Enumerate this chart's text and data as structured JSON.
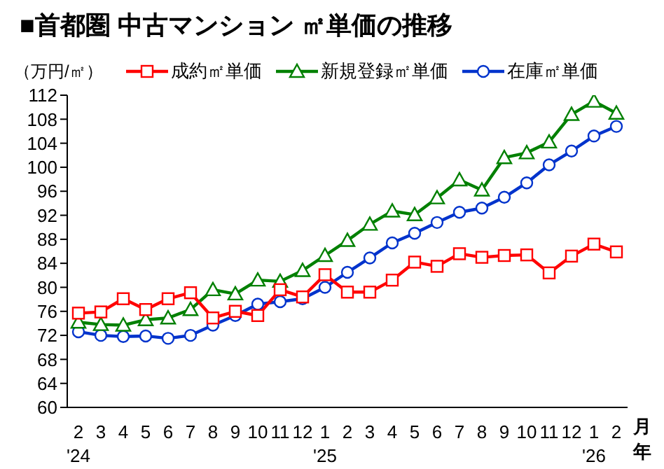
{
  "chart_data": {
    "type": "line",
    "title": "■首都圏 中古マンション ㎡単価の推移",
    "ylabel": "（万円/㎡）",
    "categories": [
      "2\n'24",
      "3",
      "4",
      "5",
      "6",
      "7",
      "8",
      "9",
      "10",
      "11",
      "12",
      "1\n'25",
      "2",
      "3",
      "4",
      "5",
      "6",
      "7",
      "8",
      "9",
      "10",
      "11",
      "12",
      "1\n'26",
      "2"
    ],
    "series": [
      {
        "name": "成約㎡単価",
        "color": "#ff0000",
        "marker": "square",
        "values": [
          75.7,
          75.9,
          78.1,
          76.3,
          78.1,
          79.1,
          74.9,
          76.0,
          75.3,
          79.6,
          78.4,
          82.1,
          79.2,
          79.2,
          81.2,
          84.2,
          83.5,
          85.6,
          85.0,
          85.3,
          85.4,
          82.4,
          85.2,
          87.2,
          85.9
        ]
      },
      {
        "name": "新規登録㎡単価",
        "color": "#008000",
        "marker": "triangle",
        "values": [
          74.2,
          73.8,
          73.7,
          74.6,
          74.9,
          76.3,
          79.6,
          78.9,
          81.2,
          81.0,
          82.8,
          85.3,
          87.8,
          90.5,
          92.7,
          92.1,
          94.9,
          97.9,
          96.2,
          101.6,
          102.4,
          104.2,
          108.8,
          111.0,
          109.0
        ]
      },
      {
        "name": "在庫㎡単価",
        "color": "#0033cc",
        "marker": "circle",
        "values": [
          72.6,
          72.0,
          71.8,
          71.9,
          71.5,
          72.0,
          73.7,
          75.3,
          77.2,
          77.6,
          78.1,
          80.0,
          82.5,
          84.9,
          87.4,
          89.0,
          90.8,
          92.5,
          93.2,
          95.0,
          97.4,
          100.4,
          102.7,
          105.2,
          106.8
        ]
      }
    ],
    "ylim": [
      60,
      112
    ],
    "yticks": [
      60,
      64,
      68,
      72,
      76,
      80,
      84,
      88,
      92,
      96,
      100,
      104,
      108,
      112
    ],
    "annotations": [
      "月",
      "年"
    ],
    "grid": false,
    "legend": "top"
  }
}
